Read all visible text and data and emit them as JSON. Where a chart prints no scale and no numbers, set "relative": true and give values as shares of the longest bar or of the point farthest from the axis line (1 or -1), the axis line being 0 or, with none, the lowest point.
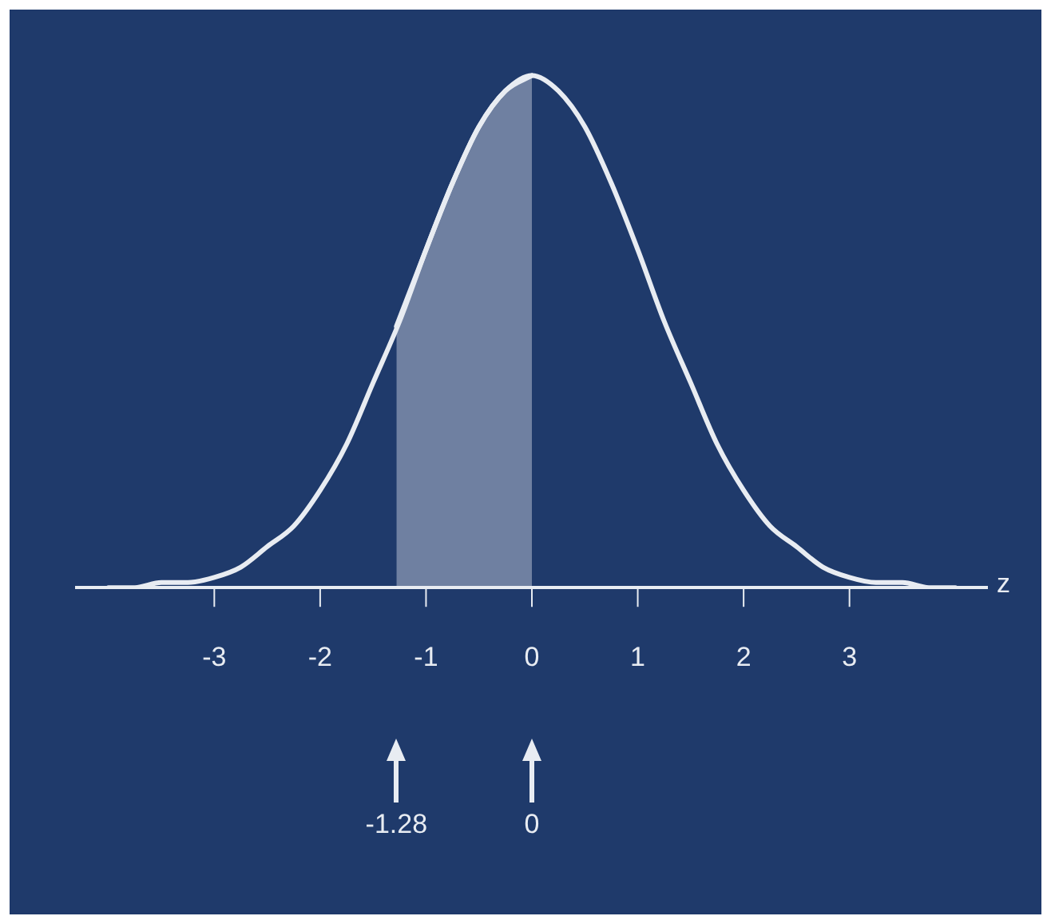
{
  "chart_data": {
    "type": "line",
    "relative": true,
    "xlabel": "z",
    "color": "#e8ecf2",
    "xlim": [
      -4.3,
      4.3
    ],
    "xticks": [
      -3,
      -2,
      -1,
      0,
      1,
      2,
      3
    ],
    "grid": false,
    "legend": false,
    "marker": "none",
    "line_style": "solid",
    "series": [
      {
        "type": "line",
        "color": "#e8ecf2",
        "x": [
          -4,
          -3.75,
          -3.5,
          -3.25,
          -3,
          -2.75,
          -2.5,
          -2.25,
          -2,
          -1.75,
          -1.5,
          -1.25,
          -1,
          -0.75,
          -0.5,
          -0.25,
          0,
          0.25,
          0.5,
          0.75,
          1,
          1.25,
          1.5,
          1.75,
          2,
          2.25,
          2.5,
          2.75,
          3,
          3.25,
          3.5,
          3.75,
          4
        ],
        "values": [
          0.0,
          0.0,
          0.01,
          0.01,
          0.02,
          0.04,
          0.08,
          0.12,
          0.19,
          0.28,
          0.4,
          0.52,
          0.66,
          0.79,
          0.9,
          0.97,
          1,
          0.97,
          0.9,
          0.79,
          0.66,
          0.52,
          0.4,
          0.28,
          0.19,
          0.12,
          0.08,
          0.04,
          0.02,
          0.01,
          0.01,
          0.0,
          0.0
        ]
      },
      {
        "type": "area",
        "color": "#e8ecf2",
        "x": [
          -1.28,
          -1,
          -0.75,
          -0.5,
          -0.25,
          0
        ],
        "values": [
          0.51,
          0.66,
          0.79,
          0.9,
          0.97,
          1
        ]
      }
    ],
    "annotations": [
      "-1.28",
      "0"
    ]
  }
}
